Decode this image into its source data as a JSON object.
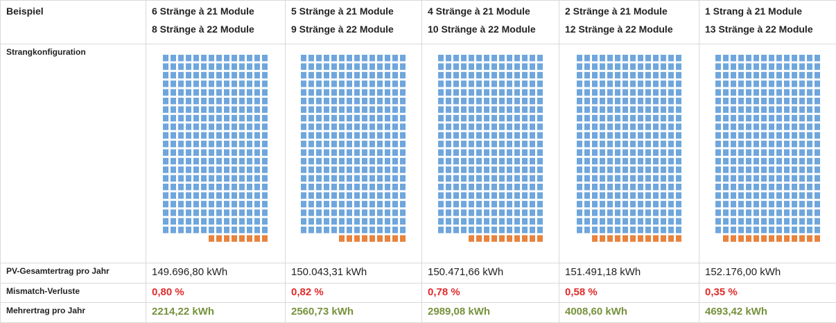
{
  "table": {
    "header": "Beispiel",
    "columns": [
      [
        "6 Stränge à 21 Module",
        "8 Stränge à 22 Module"
      ],
      [
        "5 Stränge à 21 Module",
        "9 Stränge à 22 Module"
      ],
      [
        "4 Stränge à 21 Module",
        "10 Stränge à 22 Module"
      ],
      [
        "2 Stränge à 21 Module",
        "12 Stränge à 22 Module"
      ],
      [
        "1 Strang à 21 Module",
        "13 Stränge à 22 Module"
      ]
    ],
    "config_label": "Strangkonfiguration",
    "rows": [
      {
        "label": "PV-Gesamtertrag pro Jahr",
        "values": [
          "149.696,80 kWh",
          "150.043,31 kWh",
          "150.471,66 kWh",
          "151.491,18 kWh",
          "152.176,00 kWh"
        ]
      },
      {
        "label": "Mismatch-Verluste",
        "values": [
          "0,80 %",
          "0,82 %",
          "0,78 %",
          "0,58 %",
          "0,35 %"
        ]
      },
      {
        "label": "Mehrertrag pro Jahr",
        "values": [
          "2214,22 kWh",
          "2560,73 kWh",
          "2989,08 kWh",
          "4008,60 kWh",
          "4693,42 kWh"
        ]
      }
    ]
  }
}
